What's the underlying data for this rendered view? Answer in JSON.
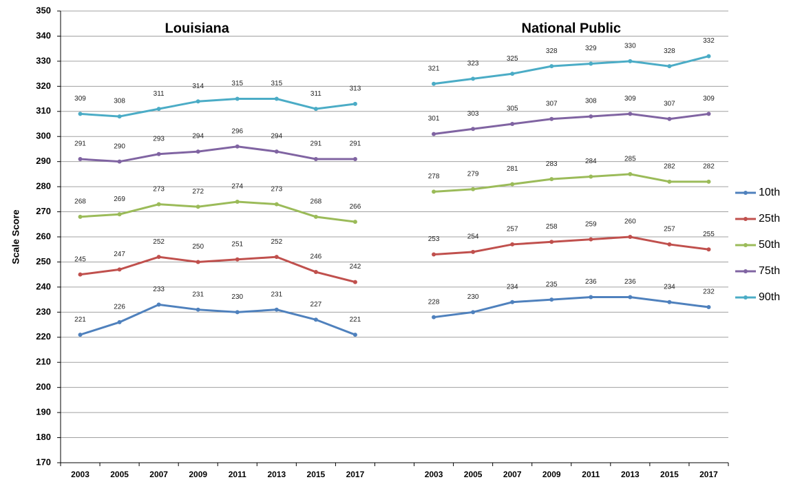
{
  "chart_data": {
    "type": "line",
    "group_titles": [
      "Louisiana",
      "National Public"
    ],
    "y_label": "Scale Score",
    "categories": [
      "2003",
      "2005",
      "2007",
      "2009",
      "2011",
      "2013",
      "2015",
      "2017",
      null,
      "2003",
      "2005",
      "2007",
      "2009",
      "2011",
      "2013",
      "2015",
      "2017"
    ],
    "series": [
      {
        "name": "10th",
        "color": "#4f81bd",
        "values": [
          221,
          226,
          233,
          231,
          230,
          231,
          227,
          221,
          null,
          228,
          230,
          234,
          235,
          236,
          236,
          234,
          232
        ]
      },
      {
        "name": "25th",
        "color": "#c0504d",
        "values": [
          245,
          247,
          252,
          250,
          251,
          252,
          246,
          242,
          null,
          253,
          254,
          257,
          258,
          259,
          260,
          257,
          255
        ]
      },
      {
        "name": "50th",
        "color": "#9bbb59",
        "values": [
          268,
          269,
          273,
          272,
          274,
          273,
          268,
          266,
          null,
          278,
          279,
          281,
          283,
          284,
          285,
          282,
          282
        ]
      },
      {
        "name": "75th",
        "color": "#8064a2",
        "values": [
          291,
          290,
          293,
          294,
          296,
          294,
          291,
          291,
          null,
          301,
          303,
          305,
          307,
          308,
          309,
          307,
          309
        ]
      },
      {
        "name": "90th",
        "color": "#4bacc6",
        "values": [
          309,
          308,
          311,
          314,
          315,
          315,
          311,
          313,
          null,
          321,
          323,
          325,
          328,
          329,
          330,
          328,
          332
        ]
      }
    ],
    "ylim": [
      170,
      350
    ],
    "yticks": [
      170,
      180,
      190,
      200,
      210,
      220,
      230,
      240,
      250,
      260,
      270,
      280,
      290,
      300,
      310,
      320,
      330,
      340,
      350
    ],
    "grid": true,
    "legend": "right"
  }
}
